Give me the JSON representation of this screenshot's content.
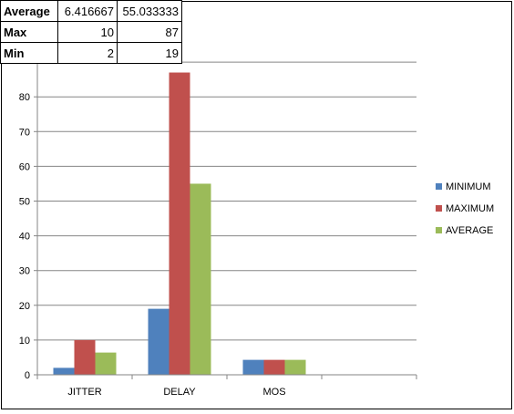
{
  "stats_table": {
    "rows": [
      {
        "label": "Average",
        "v1": "6.416667",
        "v2": "55.033333"
      },
      {
        "label": "Max",
        "v1": "10",
        "v2": "87"
      },
      {
        "label": "Min",
        "v1": "2",
        "v2": "19"
      }
    ]
  },
  "chart_data": {
    "type": "bar",
    "categories": [
      "JITTER",
      "DELAY",
      "MOS",
      ""
    ],
    "series": [
      {
        "name": "MINIMUM",
        "color": "#4F81BD",
        "values": [
          2,
          19,
          4.3,
          null
        ]
      },
      {
        "name": "MAXIMUM",
        "color": "#C0504D",
        "values": [
          10,
          87,
          4.3,
          null
        ]
      },
      {
        "name": "AVERAGE",
        "color": "#9BBB59",
        "values": [
          6.4,
          55,
          4.3,
          null
        ]
      }
    ],
    "yticks": [
      0,
      10,
      20,
      30,
      40,
      50,
      60,
      70,
      80
    ],
    "ylim": [
      0,
      90
    ],
    "grid": true,
    "legend": "right"
  }
}
